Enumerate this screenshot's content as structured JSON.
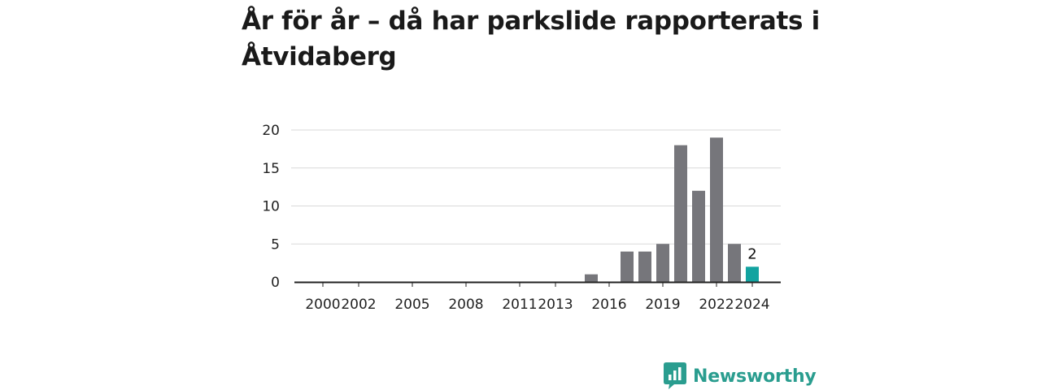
{
  "title": "År för år – då har parkslide rapporterats i Åtvidaberg",
  "brand": {
    "name": "Newsworthy",
    "logo_icon": "bar-chart-speech-bubble-icon",
    "color": "#2a9d8f"
  },
  "colors": {
    "bar": "#76767b",
    "highlight": "#12a3a0",
    "grid": "#d9d9d9",
    "axis": "#222222"
  },
  "chart_data": {
    "type": "bar",
    "categories": [
      "2000",
      "2001",
      "2002",
      "2003",
      "2004",
      "2005",
      "2006",
      "2007",
      "2008",
      "2009",
      "2010",
      "2011",
      "2012",
      "2013",
      "2014",
      "2015",
      "2016",
      "2017",
      "2018",
      "2019",
      "2020",
      "2021",
      "2022",
      "2023",
      "2024"
    ],
    "values": [
      0,
      0,
      0,
      0,
      0,
      0,
      0,
      0,
      0,
      0,
      0,
      0,
      0,
      0,
      0,
      1,
      0,
      4,
      4,
      5,
      18,
      12,
      19,
      5,
      2
    ],
    "highlight_index": 24,
    "x_tick_labels": [
      "2000",
      "2002",
      "2005",
      "2008",
      "2011",
      "2013",
      "2016",
      "2019",
      "2022",
      "2024"
    ],
    "y_ticks": [
      0,
      5,
      10,
      15,
      20
    ],
    "ylim": [
      0,
      20
    ],
    "grid": true,
    "data_labels": [
      {
        "category": "2024",
        "value": 2
      }
    ],
    "xlabel": "",
    "ylabel": ""
  }
}
